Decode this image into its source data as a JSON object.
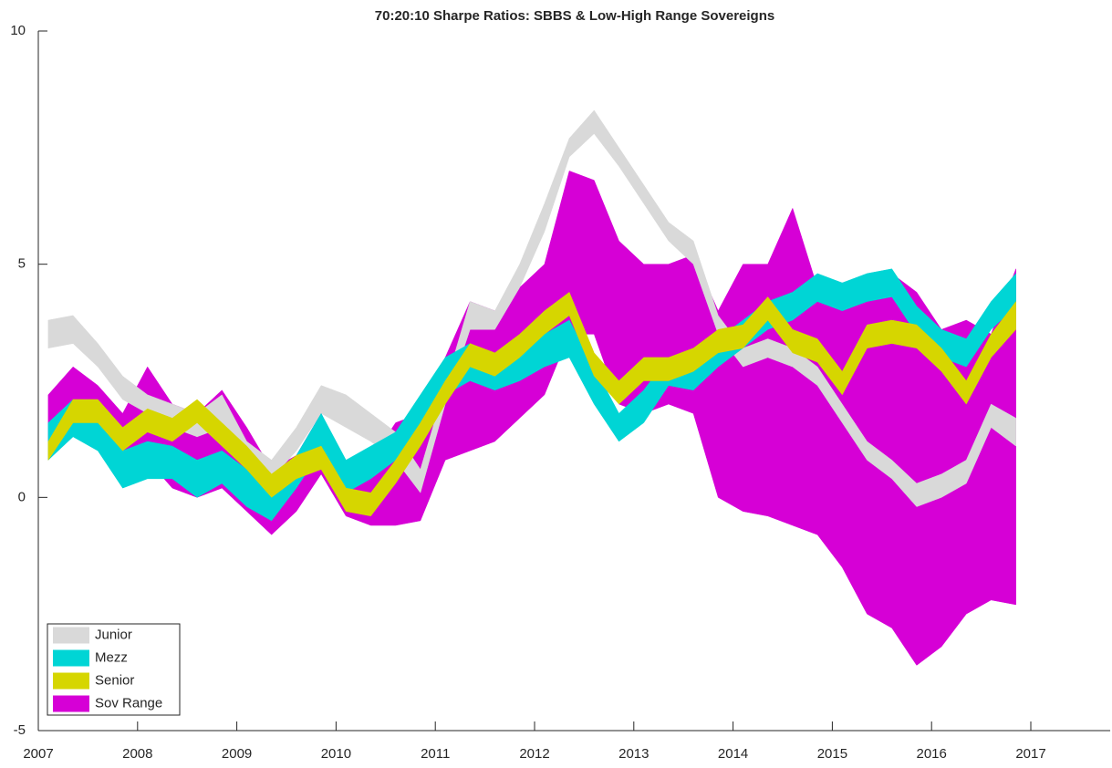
{
  "chart_data": {
    "type": "range-area",
    "title": "70:20:10 Sharpe Ratios: SBBS & Low-High Range Sovereigns",
    "x": [
      2007.1,
      2007.35,
      2007.6,
      2007.85,
      2008.1,
      2008.35,
      2008.6,
      2008.85,
      2009.1,
      2009.35,
      2009.6,
      2009.85,
      2010.1,
      2010.35,
      2010.6,
      2010.85,
      2011.1,
      2011.35,
      2011.6,
      2011.85,
      2012.1,
      2012.35,
      2012.6,
      2012.85,
      2013.1,
      2013.35,
      2013.6,
      2013.85,
      2014.1,
      2014.35,
      2014.6,
      2014.85,
      2015.1,
      2015.35,
      2015.6,
      2015.85,
      2016.1,
      2016.35,
      2016.6,
      2016.85
    ],
    "xlim": [
      2007,
      2017.8
    ],
    "xticks": [
      2007,
      2008,
      2009,
      2010,
      2011,
      2012,
      2013,
      2014,
      2015,
      2016,
      2017
    ],
    "ylim": [
      -5,
      10
    ],
    "yticks": [
      -5,
      0,
      5,
      10
    ],
    "legend": "lower-left",
    "series": [
      {
        "name": "Junior",
        "color": "#d9d9d9",
        "low": [
          3.2,
          3.3,
          2.8,
          2.1,
          1.8,
          1.5,
          1.3,
          1.5,
          0.8,
          0.4,
          1.0,
          1.8,
          1.5,
          1.2,
          0.8,
          0.1,
          2.0,
          3.6,
          3.6,
          4.5,
          5.7,
          7.3,
          7.8,
          7.1,
          6.3,
          5.5,
          5.0,
          3.5,
          2.8,
          3.0,
          2.8,
          2.4,
          1.6,
          0.8,
          0.4,
          -0.2,
          0.0,
          0.3,
          1.5,
          1.1
        ],
        "high": [
          3.8,
          3.9,
          3.3,
          2.6,
          2.2,
          2.0,
          1.8,
          2.2,
          1.2,
          0.8,
          1.5,
          2.4,
          2.2,
          1.8,
          1.4,
          0.6,
          2.4,
          4.2,
          4.0,
          5.0,
          6.3,
          7.7,
          8.3,
          7.5,
          6.7,
          5.9,
          5.5,
          3.9,
          3.2,
          3.4,
          3.2,
          2.8,
          2.0,
          1.2,
          0.8,
          0.3,
          0.5,
          0.8,
          2.0,
          1.7
        ]
      },
      {
        "name": "Mezz",
        "color": "#00d5d5",
        "low": [
          0.8,
          1.3,
          1.0,
          0.2,
          0.4,
          0.4,
          0.0,
          0.3,
          -0.2,
          -0.5,
          0.2,
          1.0,
          0.1,
          0.4,
          0.8,
          1.5,
          2.2,
          2.5,
          2.3,
          2.5,
          2.8,
          3.0,
          2.0,
          1.2,
          1.6,
          2.4,
          2.3,
          2.8,
          3.2,
          3.6,
          3.8,
          4.2,
          4.0,
          4.2,
          4.3,
          3.5,
          3.0,
          2.8,
          3.6,
          4.1
        ],
        "high": [
          1.6,
          2.1,
          1.8,
          1.0,
          1.2,
          1.1,
          0.8,
          1.0,
          0.6,
          0.3,
          0.9,
          1.8,
          0.8,
          1.1,
          1.4,
          2.2,
          3.0,
          3.3,
          3.0,
          3.2,
          3.5,
          3.8,
          2.8,
          1.8,
          2.3,
          3.0,
          2.9,
          3.4,
          3.8,
          4.2,
          4.4,
          4.8,
          4.6,
          4.8,
          4.9,
          4.1,
          3.6,
          3.4,
          4.2,
          4.8
        ]
      },
      {
        "name": "Senior",
        "color": "#d6d600",
        "low": [
          0.8,
          1.6,
          1.6,
          1.0,
          1.4,
          1.2,
          1.6,
          1.1,
          0.6,
          0.0,
          0.4,
          0.6,
          -0.3,
          -0.4,
          0.3,
          1.1,
          2.0,
          2.8,
          2.6,
          3.0,
          3.5,
          3.9,
          2.6,
          2.0,
          2.5,
          2.5,
          2.7,
          3.1,
          3.2,
          3.8,
          3.1,
          2.9,
          2.2,
          3.2,
          3.3,
          3.2,
          2.7,
          2.0,
          3.0,
          3.6
        ],
        "high": [
          1.2,
          2.1,
          2.1,
          1.5,
          1.9,
          1.7,
          2.1,
          1.6,
          1.1,
          0.5,
          0.9,
          1.1,
          0.2,
          0.1,
          0.8,
          1.6,
          2.5,
          3.3,
          3.1,
          3.5,
          4.0,
          4.4,
          3.1,
          2.5,
          3.0,
          3.0,
          3.2,
          3.6,
          3.7,
          4.3,
          3.6,
          3.4,
          2.7,
          3.7,
          3.8,
          3.7,
          3.2,
          2.5,
          3.5,
          4.2
        ]
      },
      {
        "name": "Sov Range",
        "color": "#d600d6",
        "low": [
          0.8,
          1.5,
          1.2,
          0.3,
          0.8,
          0.2,
          0.0,
          0.2,
          -0.3,
          -0.8,
          -0.3,
          0.5,
          -0.4,
          -0.6,
          -0.6,
          -0.5,
          0.8,
          1.0,
          1.2,
          1.7,
          2.2,
          3.5,
          3.5,
          2.0,
          1.8,
          2.0,
          1.8,
          0.0,
          -0.3,
          -0.4,
          -0.6,
          -0.8,
          -1.5,
          -2.5,
          -2.8,
          -3.6,
          -3.2,
          -2.5,
          -2.2,
          -2.3
        ],
        "high": [
          2.2,
          2.8,
          2.4,
          1.8,
          2.8,
          2.0,
          1.8,
          2.3,
          1.5,
          0.6,
          0.9,
          1.8,
          0.7,
          0.8,
          1.6,
          1.8,
          3.0,
          4.2,
          4.0,
          4.5,
          5.0,
          7.0,
          6.8,
          5.5,
          5.0,
          5.0,
          5.2,
          4.0,
          5.0,
          5.0,
          6.2,
          4.5,
          4.6,
          4.7,
          4.8,
          4.4,
          3.6,
          3.8,
          3.5,
          4.9
        ]
      }
    ]
  }
}
